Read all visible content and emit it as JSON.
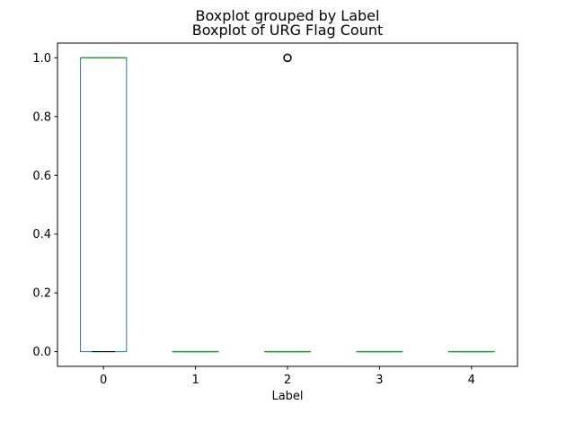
{
  "chart_data": {
    "type": "boxplot",
    "suptitle": "Boxplot grouped by Label",
    "title": "Boxplot of URG Flag Count",
    "xlabel": "Label",
    "ylabel": "",
    "ylim": [
      -0.05,
      1.05
    ],
    "yticks": [
      "0.0",
      "0.2",
      "0.4",
      "0.6",
      "0.8",
      "1.0"
    ],
    "grid": false,
    "categories": [
      "0",
      "1",
      "2",
      "3",
      "4"
    ],
    "boxes": [
      {
        "label": "0",
        "whislo": 0,
        "q1": 0,
        "med": 1,
        "q3": 1,
        "whishi": 1,
        "fliers": []
      },
      {
        "label": "1",
        "whislo": 0,
        "q1": 0,
        "med": 0,
        "q3": 0,
        "whishi": 0,
        "fliers": []
      },
      {
        "label": "2",
        "whislo": 0,
        "q1": 0,
        "med": 0,
        "q3": 0,
        "whishi": 0,
        "fliers": [
          1
        ]
      },
      {
        "label": "3",
        "whislo": 0,
        "q1": 0,
        "med": 0,
        "q3": 0,
        "whishi": 0,
        "fliers": []
      },
      {
        "label": "4",
        "whislo": 0,
        "q1": 0,
        "med": 0,
        "q3": 0,
        "whishi": 0,
        "fliers": []
      }
    ],
    "colors": {
      "box": "#1f77b4",
      "median": "#2ca02c",
      "flier": "#000000",
      "axis": "#000000"
    }
  }
}
